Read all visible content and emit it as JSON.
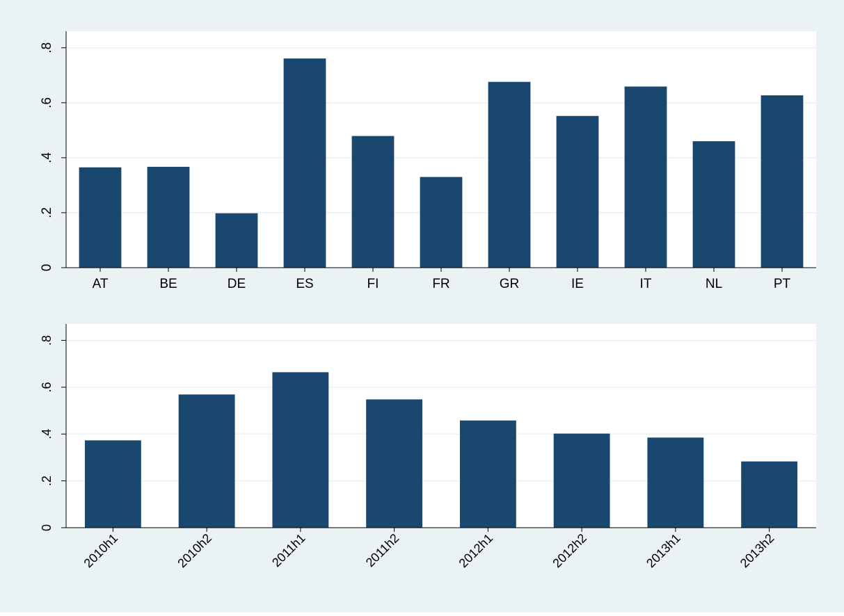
{
  "colors": {
    "outer_background": "#eaf2f3",
    "plot_background": "#ffffff",
    "bar": "#1a476f",
    "grid": "#eaf2f3",
    "axis": "#000000"
  },
  "chart_data": [
    {
      "type": "bar",
      "title": "",
      "xlabel": "",
      "ylabel": "",
      "categories": [
        "AT",
        "BE",
        "DE",
        "ES",
        "FI",
        "FR",
        "GR",
        "IE",
        "IT",
        "NL",
        "PT"
      ],
      "values": [
        0.365,
        0.367,
        0.198,
        0.761,
        0.479,
        0.33,
        0.676,
        0.552,
        0.659,
        0.46,
        0.627
      ],
      "ylim": [
        0,
        0.86
      ],
      "yticks": [
        0,
        0.2,
        0.4,
        0.6,
        0.8
      ],
      "ytick_labels": [
        "0",
        ".2",
        ".4",
        ".6",
        ".8"
      ],
      "y_tick_labels_rotated": true,
      "x_tick_labels_rotated": false,
      "grid": true,
      "legend": "none"
    },
    {
      "type": "bar",
      "title": "",
      "xlabel": "",
      "ylabel": "",
      "categories": [
        "2010h1",
        "2010h2",
        "2011h1",
        "2011h2",
        "2012h1",
        "2012h2",
        "2013h1",
        "2013h2"
      ],
      "values": [
        0.373,
        0.569,
        0.664,
        0.548,
        0.458,
        0.402,
        0.385,
        0.283
      ],
      "ylim": [
        0,
        0.87
      ],
      "yticks": [
        0,
        0.2,
        0.4,
        0.6,
        0.8
      ],
      "ytick_labels": [
        "0",
        ".2",
        ".4",
        ".6",
        ".8"
      ],
      "y_tick_labels_rotated": true,
      "x_tick_labels_rotated": true,
      "grid": true,
      "legend": "none"
    }
  ]
}
